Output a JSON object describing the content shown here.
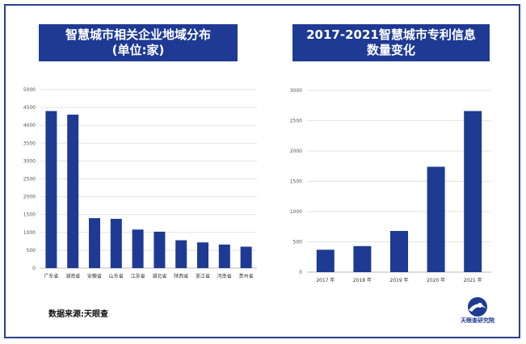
{
  "left_title_line1": "智慧城市相关企业地域分布",
  "left_title_line2": "(单位:家)",
  "right_title_line1": "2017-2021智慧城市专利信息",
  "right_title_line2": "数量变化",
  "source": "数据来源:天眼查",
  "logo_label": "天眼查研究院",
  "colors": {
    "bar": "#1f3a93",
    "banner": "#1f3a93",
    "grid": "#e3e3e3"
  },
  "chart_data": [
    {
      "type": "bar",
      "categories": [
        "广东省",
        "湖南省",
        "安徽省",
        "山东省",
        "江苏省",
        "湖北省",
        "陕西省",
        "浙江省",
        "河南省",
        "贵州省"
      ],
      "values": [
        4400,
        4300,
        1400,
        1380,
        1080,
        1020,
        780,
        720,
        660,
        600
      ],
      "yticks": [
        0,
        500,
        1000,
        1500,
        2000,
        2500,
        3000,
        3500,
        4000,
        4500,
        5000
      ],
      "ylim": [
        0,
        5000
      ],
      "grid": true
    },
    {
      "type": "bar",
      "categories": [
        "2017 年",
        "2018 年",
        "2019 年",
        "2020 年",
        "2021 年"
      ],
      "values": [
        370,
        430,
        680,
        1740,
        2660
      ],
      "yticks": [
        0,
        500,
        1000,
        1500,
        2000,
        2500,
        3000
      ],
      "ylim": [
        0,
        3000
      ],
      "grid": true
    }
  ]
}
